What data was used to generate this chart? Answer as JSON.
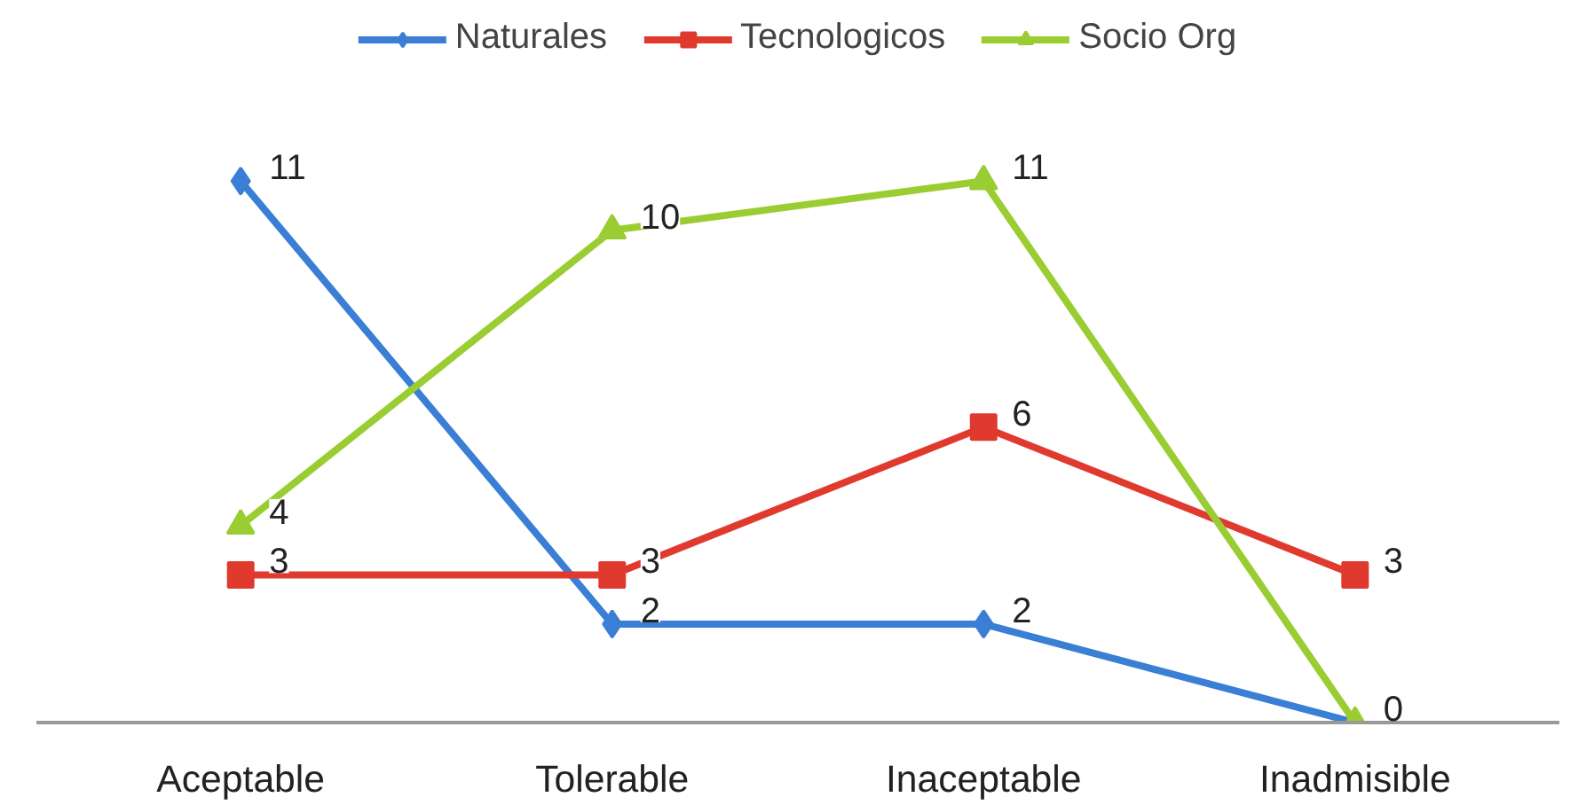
{
  "chart_data": {
    "type": "line",
    "categories": [
      "Aceptable",
      "Tolerable",
      "Inaceptable",
      "Inadmisible"
    ],
    "series": [
      {
        "name": "Naturales",
        "color": "#3a7fd5",
        "values": [
          11,
          2,
          2,
          0
        ],
        "marker": "diamond"
      },
      {
        "name": "Tecnologicos",
        "color": "#e03a2e",
        "values": [
          3,
          3,
          6,
          3
        ],
        "marker": "square"
      },
      {
        "name": "Socio Org",
        "color": "#9acd32",
        "values": [
          4,
          10,
          11,
          0
        ],
        "marker": "triangle",
        "value_labels": [
          "4",
          "10",
          "11",
          null
        ]
      }
    ],
    "data_labels": true,
    "legend": "top",
    "grid": false
  }
}
